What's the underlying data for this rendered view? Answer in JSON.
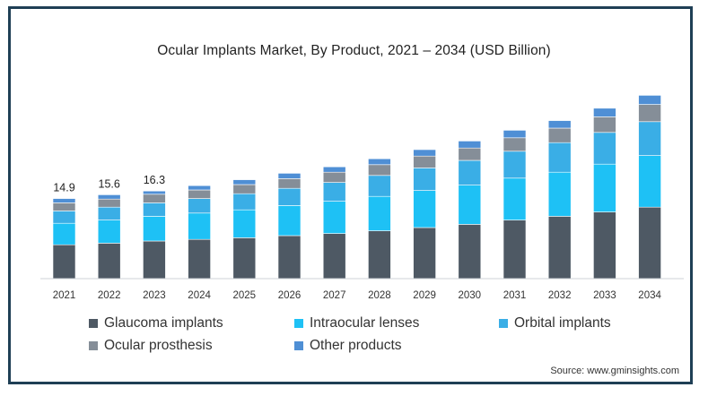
{
  "chart_data": {
    "type": "bar",
    "stacked": true,
    "title": "Ocular Implants Market, By Product, 2021 – 2034 (USD Billion)",
    "categories": [
      "2021",
      "2022",
      "2023",
      "2024",
      "2025",
      "2026",
      "2027",
      "2028",
      "2029",
      "2030",
      "2031",
      "2032",
      "2033",
      "2034"
    ],
    "series": [
      {
        "name": "Glaucoma implants",
        "color": "#4e5964",
        "values": [
          6.3,
          6.6,
          7.0,
          7.3,
          7.6,
          8.0,
          8.4,
          8.9,
          9.5,
          10.1,
          10.9,
          11.6,
          12.4,
          13.3
        ]
      },
      {
        "name": "Intraocular lenses",
        "color": "#1ec1f5",
        "values": [
          4.0,
          4.3,
          4.6,
          4.9,
          5.2,
          5.6,
          6.0,
          6.4,
          6.9,
          7.3,
          7.8,
          8.2,
          8.9,
          9.6
        ]
      },
      {
        "name": "Orbital implants",
        "color": "#3aaee6",
        "values": [
          2.3,
          2.4,
          2.5,
          2.7,
          3.0,
          3.2,
          3.5,
          3.9,
          4.2,
          4.6,
          5.0,
          5.5,
          5.9,
          6.3
        ]
      },
      {
        "name": "Ocular prosthesis",
        "color": "#858e98",
        "values": [
          1.5,
          1.5,
          1.6,
          1.6,
          1.7,
          1.8,
          1.9,
          2.0,
          2.2,
          2.3,
          2.5,
          2.7,
          2.9,
          3.2
        ]
      },
      {
        "name": "Other products",
        "color": "#4f8fd5",
        "values": [
          0.8,
          0.8,
          0.6,
          0.8,
          0.9,
          1.0,
          1.0,
          1.1,
          1.2,
          1.3,
          1.4,
          1.4,
          1.6,
          1.7
        ]
      }
    ],
    "data_labels": [
      {
        "category": "2021",
        "label": "14.9"
      },
      {
        "category": "2022",
        "label": "15.6"
      },
      {
        "category": "2023",
        "label": "16.3"
      }
    ],
    "ylim": [
      0,
      36
    ],
    "grid": false,
    "legend_position": "bottom"
  },
  "source": "Source: www.gminsights.com"
}
